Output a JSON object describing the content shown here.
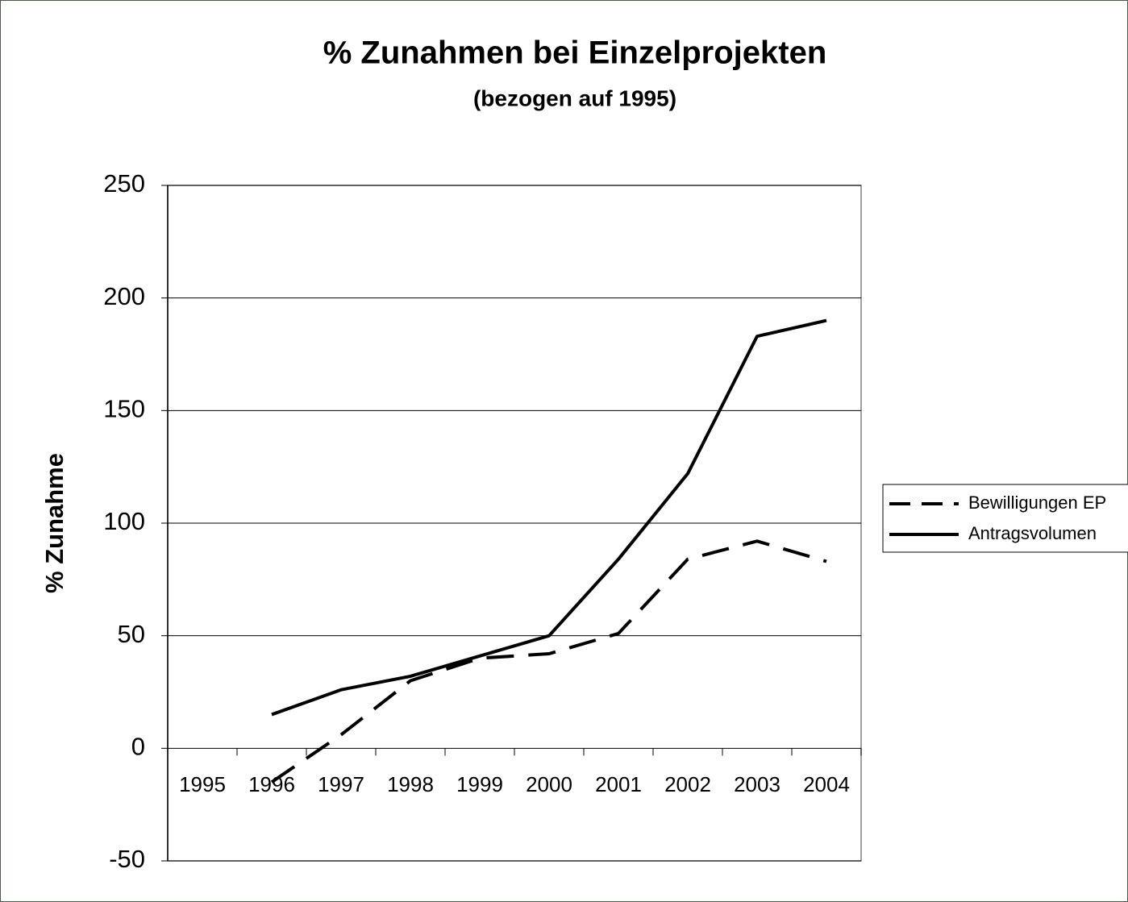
{
  "chart_data": {
    "type": "line",
    "title": "% Zunahmen bei Einzelprojekten",
    "subtitle": "(bezogen auf 1995)",
    "y_label": "% Zunahme",
    "categories": [
      "1995",
      "1996",
      "1997",
      "1998",
      "1999",
      "2000",
      "2001",
      "2002",
      "2003",
      "2004"
    ],
    "series": [
      {
        "name": "Bewilligungen EP",
        "color": "#000000",
        "style": "dashed",
        "values": [
          null,
          -15,
          6,
          30,
          40,
          42,
          51,
          84,
          92,
          83
        ]
      },
      {
        "name": "Antragsvolumen",
        "color": "#000000",
        "style": "solid",
        "values": [
          null,
          15,
          26,
          32,
          41,
          50,
          84,
          122,
          183,
          190
        ]
      }
    ],
    "ylim": [
      -50,
      250
    ],
    "yticks": [
      -50,
      0,
      50,
      100,
      150,
      200,
      250
    ],
    "grid": true,
    "legend": "right"
  }
}
